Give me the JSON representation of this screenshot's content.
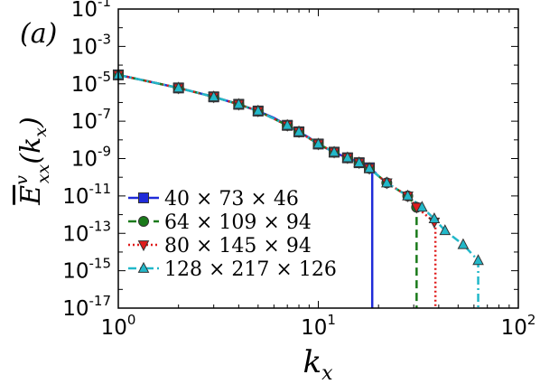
{
  "panel_label": "(a)",
  "chart_data": {
    "type": "line",
    "title": "",
    "xlabel": "k_x",
    "ylabel": "E_xx^v(k_x)",
    "xscale": "log",
    "yscale": "log",
    "xlim": [
      1,
      100
    ],
    "ylim": [
      1e-17,
      0.1
    ],
    "x_tick_labels": [
      {
        "base": "10",
        "exp": "0"
      },
      {
        "base": "10",
        "exp": "1"
      },
      {
        "base": "10",
        "exp": "2"
      }
    ],
    "y_tick_labels": [
      {
        "base": "10",
        "exp": "-1"
      },
      {
        "base": "10",
        "exp": "-3"
      },
      {
        "base": "10",
        "exp": "-5"
      },
      {
        "base": "10",
        "exp": "-7"
      },
      {
        "base": "10",
        "exp": "-9"
      },
      {
        "base": "10",
        "exp": "-11"
      },
      {
        "base": "10",
        "exp": "-13"
      },
      {
        "base": "10",
        "exp": "-15"
      },
      {
        "base": "10",
        "exp": "-17"
      }
    ],
    "legend_position": "lower-left",
    "series": [
      {
        "name": "40 × 73 × 46",
        "color": "#1f2bd9",
        "line": "solid",
        "marker": "square",
        "x": [
          1,
          2,
          3,
          4,
          5,
          6,
          7,
          8,
          9,
          10,
          11,
          12,
          13,
          14,
          15,
          16,
          17,
          18,
          19
        ],
        "y": [
          3e-05,
          6e-06,
          2e-06,
          8e-07,
          3.5e-07,
          1.5e-07,
          6e-08,
          2.7e-08,
          1.3e-08,
          6e-09,
          3.5e-09,
          2.2e-09,
          1.5e-09,
          1.1e-09,
          8e-10,
          6e-10,
          4.5e-10,
          3.2e-10,
          2e-10
        ],
        "markers_x": [
          1,
          2,
          3,
          4,
          5,
          7,
          8,
          10,
          12,
          14,
          16,
          18
        ],
        "cutoff_x": 18.6
      },
      {
        "name": "64 × 109 × 94",
        "color": "#1a7a1a",
        "line": "dashed",
        "marker": "circle",
        "x": [
          1,
          2,
          3,
          4,
          5,
          7,
          8,
          10,
          12,
          14,
          16,
          18,
          22,
          28,
          31
        ],
        "y": [
          3e-05,
          6e-06,
          2e-06,
          8e-07,
          3.5e-07,
          6e-08,
          2.7e-08,
          6e-09,
          2.2e-09,
          1.1e-09,
          6e-10,
          3e-10,
          5e-11,
          1e-11,
          2.5e-12
        ],
        "markers_x": [
          1,
          2,
          3,
          4,
          5,
          7,
          8,
          10,
          12,
          14,
          16,
          18,
          22,
          28,
          31
        ],
        "cutoff_x": 31
      },
      {
        "name": "80 × 145 × 94",
        "color": "#e01c1c",
        "line": "dotted",
        "marker": "triangle-down",
        "x": [
          1,
          2,
          3,
          4,
          5,
          7,
          8,
          10,
          12,
          14,
          16,
          18,
          22,
          28,
          31,
          38
        ],
        "y": [
          3e-05,
          6e-06,
          2e-06,
          8e-07,
          3.5e-07,
          6e-08,
          2.7e-08,
          6e-09,
          2.2e-09,
          1.1e-09,
          6e-10,
          3e-10,
          5e-11,
          1e-11,
          2.5e-12,
          4e-13
        ],
        "markers_x": [
          1,
          2,
          3,
          4,
          5,
          7,
          8,
          10,
          12,
          14,
          16,
          18,
          22,
          28,
          31,
          38
        ],
        "cutoff_x": 38.5
      },
      {
        "name": "128 × 217 × 126",
        "color": "#22b8c9",
        "line": "dash-dot",
        "marker": "triangle-up",
        "x": [
          1,
          2,
          3,
          4,
          5,
          7,
          8,
          10,
          12,
          14,
          16,
          18,
          22,
          28,
          33,
          38,
          43,
          53,
          63
        ],
        "y": [
          3e-05,
          6e-06,
          2e-06,
          8e-07,
          3.5e-07,
          6e-08,
          2.7e-08,
          6e-09,
          2.2e-09,
          1.1e-09,
          6e-10,
          3e-10,
          5e-11,
          1e-11,
          2.5e-12,
          6e-13,
          1.4e-13,
          2.5e-14,
          3.5e-15
        ],
        "markers_x": [
          1,
          2,
          3,
          4,
          5,
          7,
          8,
          10,
          12,
          14,
          16,
          18,
          22,
          28,
          33,
          38,
          43,
          53,
          63
        ],
        "cutoff_x": 63
      }
    ]
  }
}
